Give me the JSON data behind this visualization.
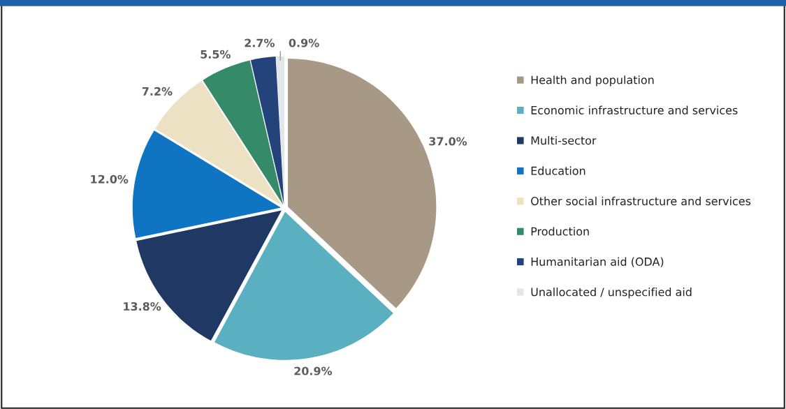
{
  "chart_data": {
    "type": "pie",
    "categories": [
      "Health and population",
      "Economic infrastructure and services",
      "Multi-sector",
      "Education",
      "Other social infrastructure and services",
      "Production",
      "Humanitarian aid (ODA)",
      "Unallocated / unspecified aid"
    ],
    "values": [
      37.0,
      20.9,
      13.8,
      12.0,
      7.2,
      5.5,
      2.7,
      0.9
    ],
    "colors": [
      "#a89886",
      "#5aafc0",
      "#1f3864",
      "#0f75c2",
      "#ede1c3",
      "#358a6a",
      "#24437a",
      "#e3e6e8"
    ],
    "value_labels": [
      "37.0%",
      "20.9%",
      "13.8%",
      "12.0%",
      "7.2%",
      "5.5%",
      "2.7%",
      "0.9%"
    ],
    "legend": "right"
  }
}
